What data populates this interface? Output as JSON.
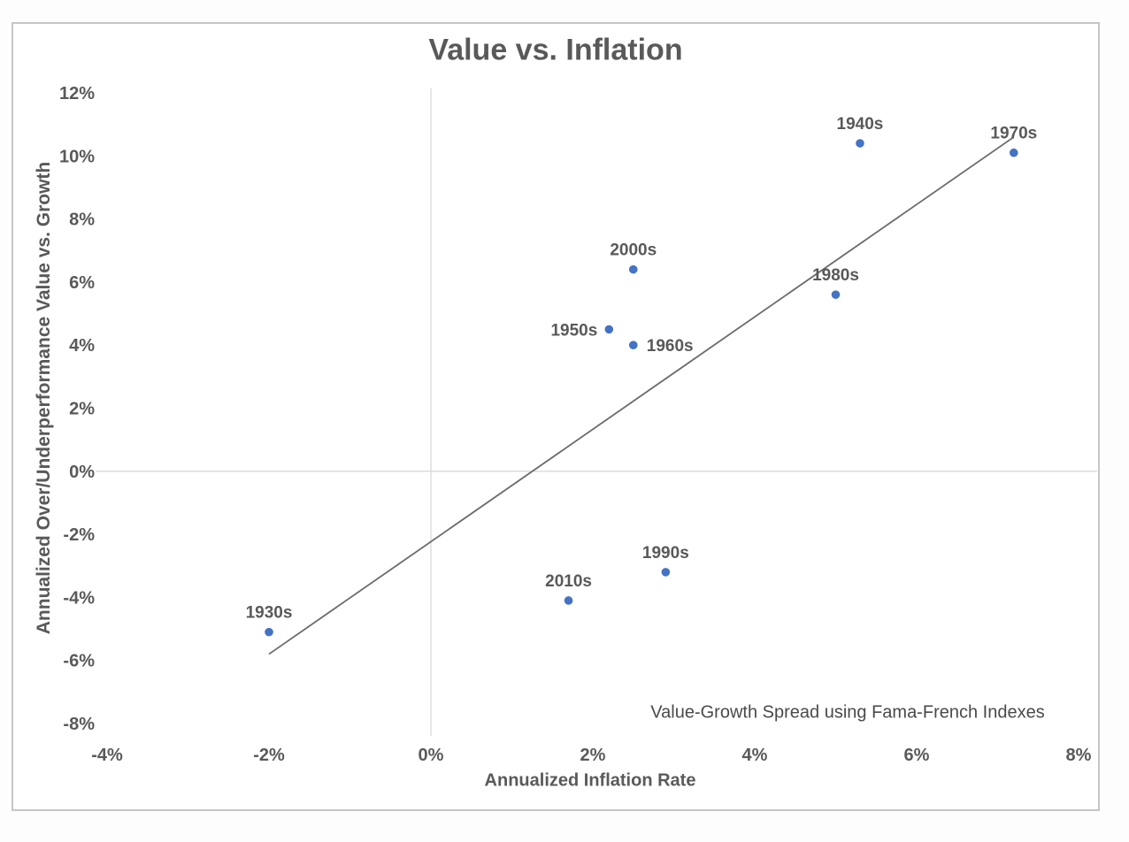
{
  "chart_data": {
    "type": "scatter",
    "title": "Value vs. Inflation",
    "xlabel": "Annualized Inflation Rate",
    "ylabel": "Annualized Over/Underperformance Value vs. Growth",
    "annotation": "Value-Growth Spread using Fama-French Indexes",
    "xlim": [
      -4,
      8
    ],
    "ylim": [
      -8,
      12
    ],
    "grid": "zero-lines-only",
    "legend": "none",
    "x_ticks": [
      {
        "value": -4,
        "label": "-4%"
      },
      {
        "value": -2,
        "label": "-2%"
      },
      {
        "value": 0,
        "label": "0%"
      },
      {
        "value": 2,
        "label": "2%"
      },
      {
        "value": 4,
        "label": "4%"
      },
      {
        "value": 6,
        "label": "6%"
      },
      {
        "value": 8,
        "label": "8%"
      }
    ],
    "y_ticks": [
      {
        "value": 12,
        "label": "12%"
      },
      {
        "value": 10,
        "label": "10%"
      },
      {
        "value": 8,
        "label": "8%"
      },
      {
        "value": 6,
        "label": "6%"
      },
      {
        "value": 4,
        "label": "4%"
      },
      {
        "value": 2,
        "label": "2%"
      },
      {
        "value": 0,
        "label": "0%"
      },
      {
        "value": -2,
        "label": "-2%"
      },
      {
        "value": -4,
        "label": "-4%"
      },
      {
        "value": -6,
        "label": "-6%"
      },
      {
        "value": -8,
        "label": "-8%"
      }
    ],
    "points": [
      {
        "label": "1930s",
        "x": -2.0,
        "y": -5.1,
        "label_pos": "top"
      },
      {
        "label": "1940s",
        "x": 5.3,
        "y": 10.4,
        "label_pos": "top"
      },
      {
        "label": "1950s",
        "x": 2.2,
        "y": 4.5,
        "label_pos": "left"
      },
      {
        "label": "1960s",
        "x": 2.5,
        "y": 4.0,
        "label_pos": "right"
      },
      {
        "label": "1970s",
        "x": 7.2,
        "y": 10.1,
        "label_pos": "top"
      },
      {
        "label": "1980s",
        "x": 5.0,
        "y": 5.6,
        "label_pos": "top"
      },
      {
        "label": "1990s",
        "x": 2.9,
        "y": -3.2,
        "label_pos": "top"
      },
      {
        "label": "2000s",
        "x": 2.5,
        "y": 6.4,
        "label_pos": "top"
      },
      {
        "label": "2010s",
        "x": 1.7,
        "y": -4.1,
        "label_pos": "top"
      }
    ],
    "trendline": {
      "x1": -2.0,
      "y1": -5.8,
      "x2": 7.2,
      "y2": 10.6
    },
    "point_color": "#4472C4",
    "trend_color": "#6b6b6b",
    "gridline_color": "#d9d9d9",
    "text_color": "#595959"
  }
}
